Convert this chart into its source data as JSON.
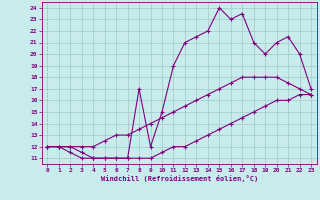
{
  "xlabel": "Windchill (Refroidissement éolien,°C)",
  "bg_color": "#c8ecec",
  "line_color": "#800080",
  "grid_color": "#a0c8c8",
  "xlim": [
    -0.5,
    23.5
  ],
  "ylim": [
    10.5,
    24.5
  ],
  "xticks": [
    0,
    1,
    2,
    3,
    4,
    5,
    6,
    7,
    8,
    9,
    10,
    11,
    12,
    13,
    14,
    15,
    16,
    17,
    18,
    19,
    20,
    21,
    22,
    23
  ],
  "yticks": [
    11,
    12,
    13,
    14,
    15,
    16,
    17,
    18,
    19,
    20,
    21,
    22,
    23,
    24
  ],
  "lines": [
    {
      "x": [
        0,
        1,
        2,
        3,
        4,
        5,
        6,
        7,
        8,
        9,
        10,
        11,
        12,
        13,
        14,
        15,
        16,
        17,
        18,
        19,
        20,
        21,
        22,
        23
      ],
      "y": [
        12,
        12,
        11.5,
        11,
        11,
        11,
        11,
        11,
        11,
        11,
        11.5,
        12,
        12,
        12.5,
        13,
        13.5,
        14,
        14.5,
        15,
        15.5,
        16,
        16,
        16.5,
        16.5
      ]
    },
    {
      "x": [
        0,
        1,
        2,
        3,
        4,
        5,
        6,
        7,
        8,
        9,
        10,
        11,
        12,
        13,
        14,
        15,
        16,
        17,
        18,
        19,
        20,
        21,
        22,
        23
      ],
      "y": [
        12,
        12,
        12,
        12,
        12,
        12.5,
        13,
        13,
        13.5,
        14,
        14.5,
        15,
        15.5,
        16,
        16.5,
        17,
        17.5,
        18,
        18,
        18,
        18,
        17.5,
        17,
        16.5
      ]
    },
    {
      "x": [
        0,
        1,
        2,
        3,
        4,
        5,
        6,
        7,
        8,
        9,
        10,
        11,
        12,
        13,
        14,
        15,
        16,
        17,
        18,
        19,
        20,
        21,
        22,
        23
      ],
      "y": [
        12,
        12,
        12,
        11.5,
        11,
        11,
        11,
        11,
        17,
        12,
        15,
        19,
        21,
        21.5,
        22,
        24,
        23,
        23.5,
        21,
        20,
        21,
        21.5,
        20,
        17
      ]
    }
  ]
}
